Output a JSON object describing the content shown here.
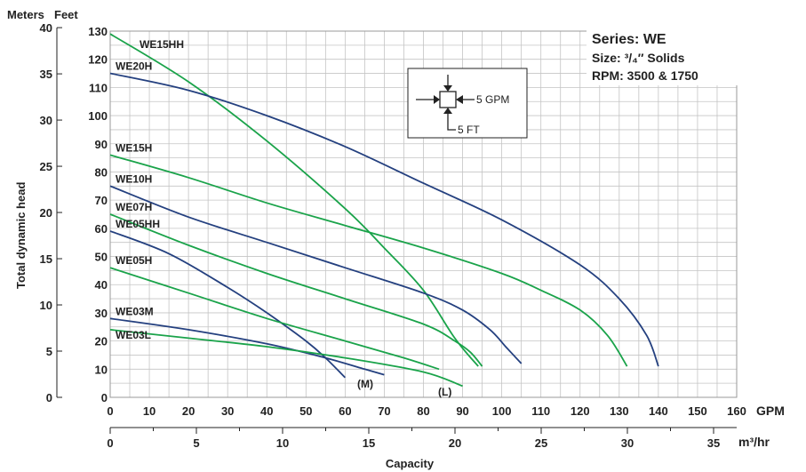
{
  "chart_data": {
    "type": "line",
    "title": "Series: WE",
    "subtitle_lines": [
      "Size: ³/₄″ Solids",
      "RPM: 3500 & 1750"
    ],
    "xlabel": "Capacity",
    "ylabel": "Total dynamic head",
    "left_axis_title": "Meters",
    "feet_axis_title": "Feet",
    "gpm_unit": "GPM",
    "m3_unit": "m³/hr",
    "xlim": [
      0,
      160
    ],
    "ylim_feet": [
      0,
      130
    ],
    "gpm_ticks": [
      "0",
      "10",
      "20",
      "30",
      "40",
      "50",
      "60",
      "70",
      "80",
      "90",
      "100",
      "110",
      "120",
      "130",
      "140",
      "150",
      "160"
    ],
    "m3_ticks": [
      "0",
      "5",
      "10",
      "15",
      "20",
      "25",
      "30",
      "35"
    ],
    "feet_ticks": [
      "0",
      "10",
      "20",
      "30",
      "40",
      "50",
      "60",
      "70",
      "80",
      "90",
      "100",
      "110",
      "120",
      "130"
    ],
    "meter_ticks": [
      "0",
      "5",
      "10",
      "15",
      "20",
      "25",
      "30",
      "35",
      "40"
    ],
    "grid": true,
    "colors": {
      "green": "#1aa34a",
      "blue": "#24407f",
      "grid": "#c4c4c4",
      "title": "#24407f"
    },
    "legend_box": {
      "flow": "5 GPM",
      "head": "5 FT"
    },
    "series": [
      {
        "name": "WE15HH",
        "color": "green",
        "x": [
          0,
          20,
          40,
          60,
          70,
          80,
          88,
          94
        ],
        "y": [
          129,
          112,
          91,
          67,
          53,
          38,
          21,
          11
        ]
      },
      {
        "name": "WE20H",
        "color": "blue",
        "x": [
          0,
          20,
          40,
          60,
          80,
          100,
          120,
          130,
          137,
          140
        ],
        "y": [
          115,
          109,
          100,
          89,
          76,
          63,
          47,
          35,
          22,
          11
        ]
      },
      {
        "name": "WE15H",
        "color": "green",
        "x": [
          0,
          20,
          40,
          60,
          80,
          100,
          110,
          120,
          127,
          132
        ],
        "y": [
          86,
          78,
          69,
          61,
          53,
          44,
          38,
          31,
          22,
          11
        ]
      },
      {
        "name": "WE10H",
        "color": "blue",
        "x": [
          0,
          20,
          40,
          60,
          80,
          90,
          97,
          101,
          105
        ],
        "y": [
          75,
          64,
          55,
          46,
          37,
          31,
          24,
          18,
          12
        ]
      },
      {
        "name": "WE07H",
        "color": "green",
        "x": [
          0,
          20,
          40,
          60,
          80,
          88,
          92,
          95
        ],
        "y": [
          65,
          54,
          44,
          35,
          26,
          20,
          16,
          11
        ]
      },
      {
        "name": "WE05HH",
        "color": "blue",
        "x": [
          0,
          15,
          30,
          40,
          50,
          55,
          60
        ],
        "y": [
          59,
          51,
          39,
          30,
          20,
          14,
          7
        ]
      },
      {
        "name": "WE05H",
        "color": "green",
        "x": [
          0,
          20,
          40,
          60,
          75,
          84
        ],
        "y": [
          46,
          37,
          28,
          20,
          14,
          10
        ]
      },
      {
        "name": "WE03M",
        "color": "blue",
        "x": [
          0,
          20,
          40,
          55,
          65,
          70
        ],
        "y": [
          28,
          24,
          19,
          14,
          10,
          8
        ]
      },
      {
        "name": "WE03L",
        "color": "green",
        "x": [
          0,
          20,
          40,
          60,
          80,
          90
        ],
        "y": [
          24,
          21,
          18,
          14,
          9,
          4
        ]
      }
    ],
    "annotations": [
      "(M)",
      "(L)"
    ]
  }
}
